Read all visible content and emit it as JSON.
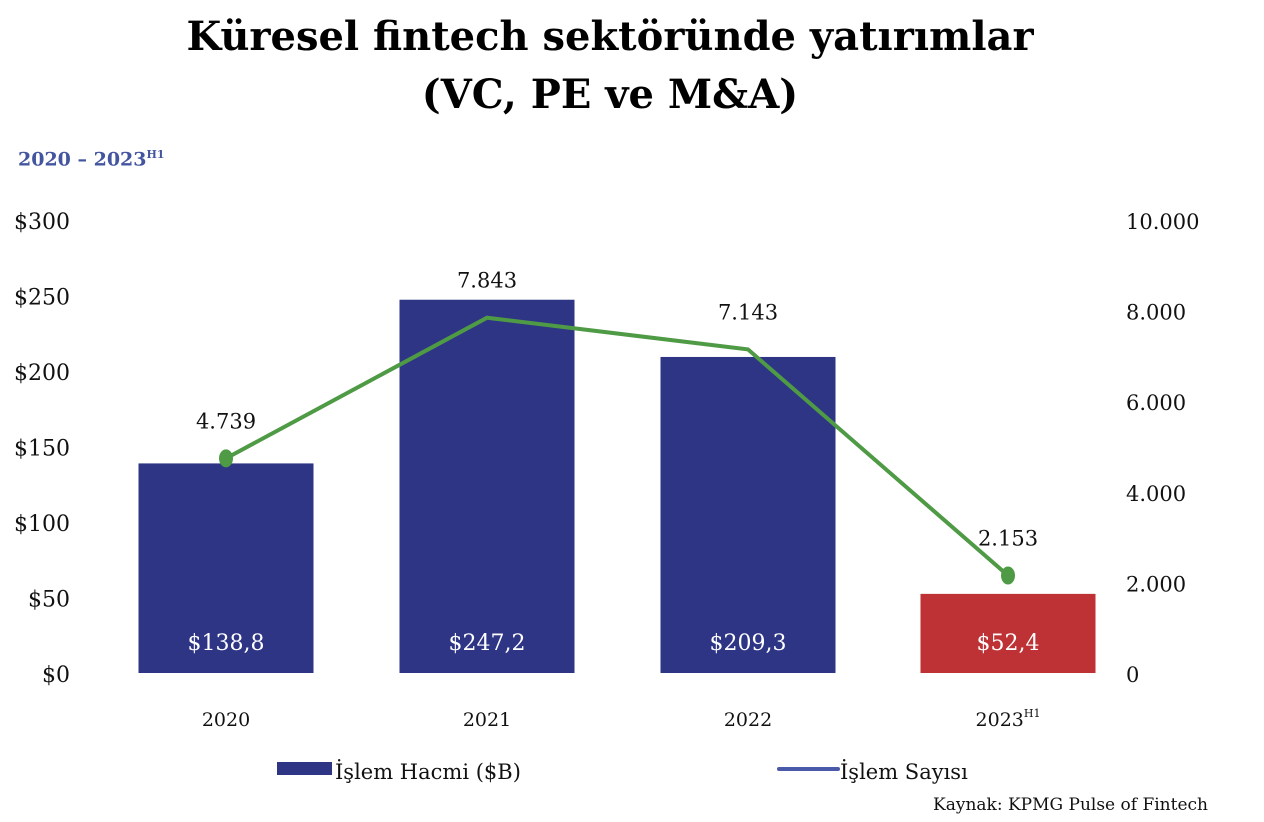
{
  "chart_data": {
    "type": "bar",
    "title_line1": "Küresel fintech sektöründe yatırımlar",
    "title_line2": "(VC, PE ve M&A)",
    "subtitle": "2020 – 2023",
    "subtitle_sup": "H1",
    "categories": [
      "2020",
      "2021",
      "2022",
      "2023"
    ],
    "category_sup": [
      "",
      "",
      "",
      "H1"
    ],
    "series": [
      {
        "name": "İşlem Hacmi ($B)",
        "type": "bar",
        "axis": "left",
        "values": [
          138.8,
          247.2,
          209.3,
          52.4
        ],
        "labels": [
          "$138,8",
          "$247,2",
          "$209,3",
          "$52,4"
        ],
        "colors": [
          "#2e3585",
          "#2e3585",
          "#2e3585",
          "#be3235"
        ]
      },
      {
        "name": "İşlem Sayısı",
        "type": "line",
        "axis": "right",
        "values": [
          4739,
          7843,
          7143,
          2153
        ],
        "labels": [
          "4.739",
          "7.843",
          "7.143",
          "2.153"
        ],
        "color": "#4f9a45"
      }
    ],
    "left_axis": {
      "ylim": [
        0,
        300
      ],
      "ticks": [
        "$0",
        "$50",
        "$100",
        "$150",
        "$200",
        "$250",
        "$300"
      ]
    },
    "right_axis": {
      "ylim": [
        0,
        10000
      ],
      "ticks": [
        "0",
        "2.000",
        "4.000",
        "6.000",
        "8.000",
        "10.000"
      ]
    },
    "legend": {
      "placement": "bottom",
      "bar_label": "İşlem Hacmi ($B)",
      "line_label": "İşlem Sayısı",
      "line_swatch_color": "#4a5aa8"
    },
    "source": "Kaynak: KPMG Pulse of Fintech"
  }
}
